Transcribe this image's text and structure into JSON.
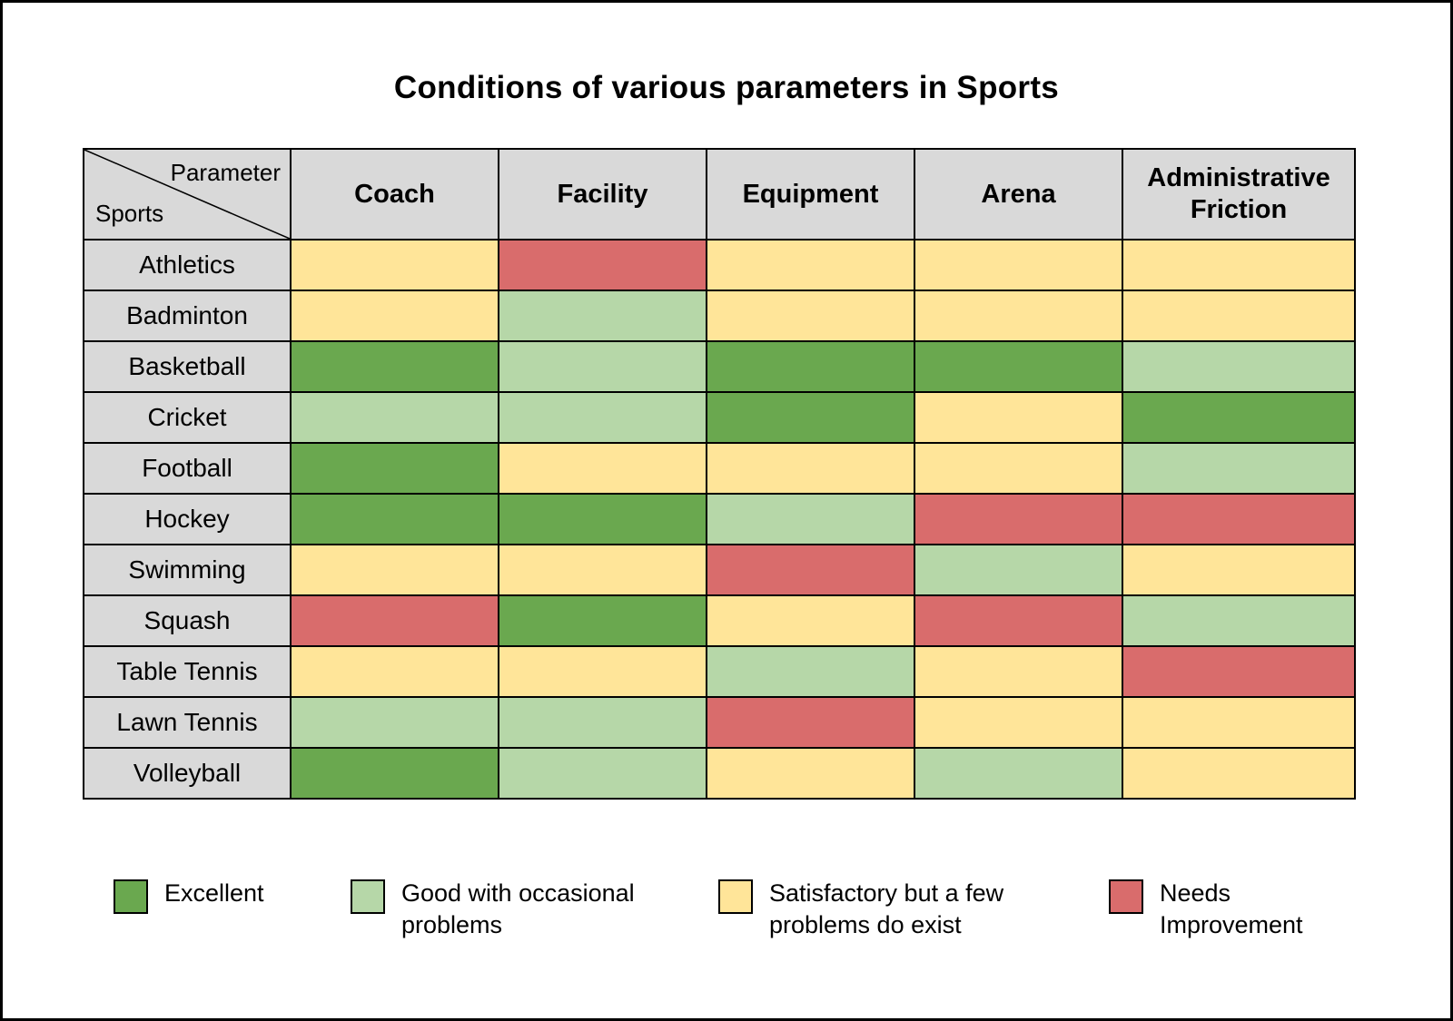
{
  "title": "Conditions of various parameters in Sports",
  "corner": {
    "parameter": "Parameter",
    "sports": "Sports"
  },
  "columns": [
    "Coach",
    "Facility",
    "Equipment",
    "Arena",
    "Administrative Friction"
  ],
  "rating_colors": {
    "excellent": "#6aa84f",
    "good": "#b6d7a8",
    "satisfactory": "#ffe599",
    "needs-improvement": "#d96c6c"
  },
  "rows": [
    {
      "sport": "Athletics",
      "ratings": [
        "satisfactory",
        "needs-improvement",
        "satisfactory",
        "satisfactory",
        "satisfactory"
      ]
    },
    {
      "sport": "Badminton",
      "ratings": [
        "satisfactory",
        "good",
        "satisfactory",
        "satisfactory",
        "satisfactory"
      ]
    },
    {
      "sport": "Basketball",
      "ratings": [
        "excellent",
        "good",
        "excellent",
        "excellent",
        "good"
      ]
    },
    {
      "sport": "Cricket",
      "ratings": [
        "good",
        "good",
        "excellent",
        "satisfactory",
        "excellent"
      ]
    },
    {
      "sport": "Football",
      "ratings": [
        "excellent",
        "satisfactory",
        "satisfactory",
        "satisfactory",
        "good"
      ]
    },
    {
      "sport": "Hockey",
      "ratings": [
        "excellent",
        "excellent",
        "good",
        "needs-improvement",
        "needs-improvement"
      ]
    },
    {
      "sport": "Swimming",
      "ratings": [
        "satisfactory",
        "satisfactory",
        "needs-improvement",
        "good",
        "satisfactory"
      ]
    },
    {
      "sport": "Squash",
      "ratings": [
        "needs-improvement",
        "excellent",
        "satisfactory",
        "needs-improvement",
        "good"
      ]
    },
    {
      "sport": "Table Tennis",
      "ratings": [
        "satisfactory",
        "satisfactory",
        "good",
        "satisfactory",
        "needs-improvement"
      ]
    },
    {
      "sport": "Lawn Tennis",
      "ratings": [
        "good",
        "good",
        "needs-improvement",
        "satisfactory",
        "satisfactory"
      ]
    },
    {
      "sport": "Volleyball",
      "ratings": [
        "excellent",
        "good",
        "satisfactory",
        "good",
        "satisfactory"
      ]
    }
  ],
  "legend": [
    {
      "rating": "excellent",
      "label": "Excellent"
    },
    {
      "rating": "good",
      "label": "Good with occasional problems"
    },
    {
      "rating": "satisfactory",
      "label": "Satisfactory but a few problems do exist"
    },
    {
      "rating": "needs-improvement",
      "label": "Needs Improvement"
    }
  ],
  "chart_data": {
    "type": "heatmap",
    "title": "Conditions of various parameters in Sports",
    "x_categories": [
      "Coach",
      "Facility",
      "Equipment",
      "Arena",
      "Administrative Friction"
    ],
    "y_categories": [
      "Athletics",
      "Badminton",
      "Basketball",
      "Cricket",
      "Football",
      "Hockey",
      "Swimming",
      "Squash",
      "Table Tennis",
      "Lawn Tennis",
      "Volleyball"
    ],
    "values": [
      [
        "satisfactory",
        "needs-improvement",
        "satisfactory",
        "satisfactory",
        "satisfactory"
      ],
      [
        "satisfactory",
        "good",
        "satisfactory",
        "satisfactory",
        "satisfactory"
      ],
      [
        "excellent",
        "good",
        "excellent",
        "excellent",
        "good"
      ],
      [
        "good",
        "good",
        "excellent",
        "satisfactory",
        "excellent"
      ],
      [
        "excellent",
        "satisfactory",
        "satisfactory",
        "satisfactory",
        "good"
      ],
      [
        "excellent",
        "excellent",
        "good",
        "needs-improvement",
        "needs-improvement"
      ],
      [
        "satisfactory",
        "satisfactory",
        "needs-improvement",
        "good",
        "satisfactory"
      ],
      [
        "needs-improvement",
        "excellent",
        "satisfactory",
        "needs-improvement",
        "good"
      ],
      [
        "satisfactory",
        "satisfactory",
        "good",
        "satisfactory",
        "needs-improvement"
      ],
      [
        "good",
        "good",
        "needs-improvement",
        "satisfactory",
        "satisfactory"
      ],
      [
        "excellent",
        "good",
        "satisfactory",
        "good",
        "satisfactory"
      ]
    ],
    "rating_scale": {
      "excellent": "Excellent",
      "good": "Good with occasional problems",
      "satisfactory": "Satisfactory but a few problems do exist",
      "needs-improvement": "Needs Improvement"
    },
    "colors": {
      "excellent": "#6aa84f",
      "good": "#b6d7a8",
      "satisfactory": "#ffe599",
      "needs-improvement": "#d96c6c"
    },
    "legend_position": "bottom",
    "grid": true
  }
}
